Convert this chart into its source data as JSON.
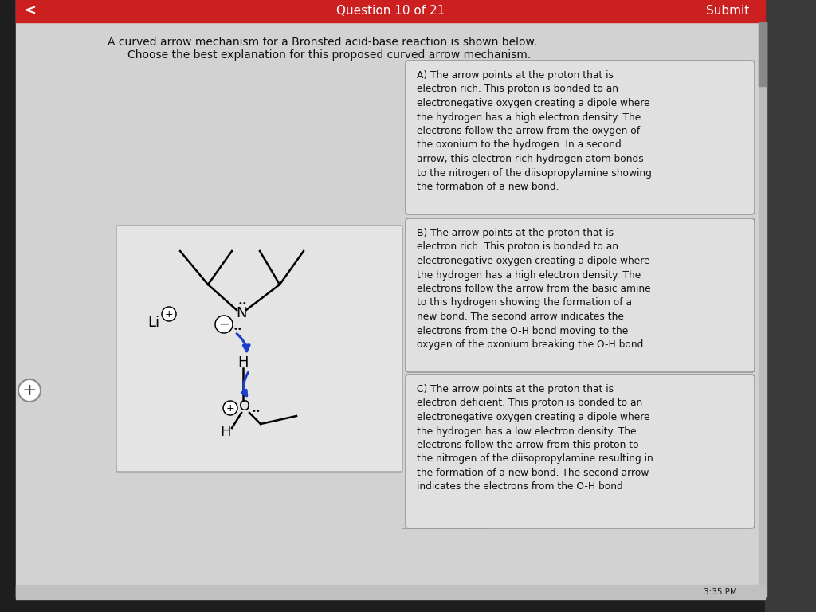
{
  "title": "Question 10 of 21",
  "submit_text": "Submit",
  "header_line1": "A curved arrow mechanism for a Bronsted acid-base reaction is shown below.",
  "header_line2": "Choose the best explanation for this proposed curved arrow mechanism.",
  "option_A": "A) The arrow points at the proton that is\nelectron rich. This proton is bonded to an\nelectronegative oxygen creating a dipole where\nthe hydrogen has a high electron density. The\nelectrons follow the arrow from the oxygen of\nthe oxonium to the hydrogen. In a second\narrow, this electron rich hydrogen atom bonds\nto the nitrogen of the diisopropylamine showing\nthe formation of a new bond.",
  "option_B": "B) The arrow points at the proton that is\nelectron rich. This proton is bonded to an\nelectronegative oxygen creating a dipole where\nthe hydrogen has a high electron density. The\nelectrons follow the arrow from the basic amine\nto this hydrogen showing the formation of a\nnew bond. The second arrow indicates the\nelectrons from the O-H bond moving to the\noxygen of the oxonium breaking the O-H bond.",
  "option_C": "C) The arrow points at the proton that is\nelectron deficient. This proton is bonded to an\nelectronegative oxygen creating a dipole where\nthe hydrogen has a low electron density. The\nelectrons follow the arrow from this proton to\nthe nitrogen of the diisopropylamine resulting in\nthe formation of a new bond. The second arrow\nindicates the electrons from the O-H bond",
  "bg_dark": "#1e1e1e",
  "bg_light": "#d2d2d2",
  "red_bar": "#cc2020",
  "arrow_color": "#1a3fcc",
  "text_dark": "#111111",
  "text_white": "#ffffff",
  "box_bg": "#e0e0e0",
  "box_border": "#999999",
  "scrollbar_bg": "#bbbbbb",
  "scrollbar_fg": "#888888"
}
